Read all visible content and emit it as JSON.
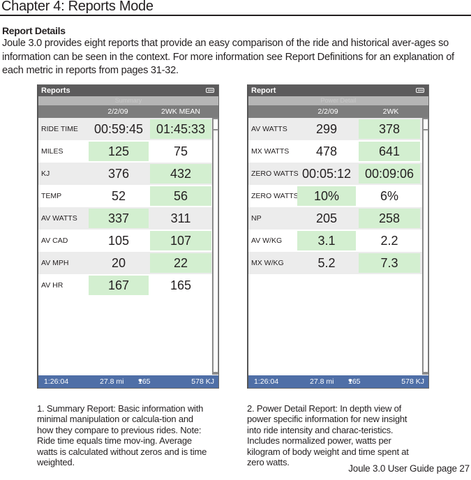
{
  "page": {
    "chapter_title": "Chapter 4: Reports Mode",
    "section_title": "Report Details",
    "intro": "Joule 3.0  provides eight reports that provide an easy comparison of the ride and historical aver-ages so information can be seen in the context. For more information see Report Definitions for an explanation of  each metric in reports from pages 31-32.",
    "footer": "Joule 3.0 User Guide page 27"
  },
  "colors": {
    "title_bar": "#5c5b5c",
    "subtitle_band": "#b5b5b5",
    "column_header": "#7c7c7c",
    "highlight_cell": "#d3efd0",
    "alt_row": "#ececec",
    "status_bar": "#4f6fa7"
  },
  "screens": [
    {
      "title": "Reports",
      "battery_icon": "battery-icon",
      "subtitle": "Summary",
      "col1": "2/2/09",
      "col2": "2WK MEAN",
      "rows": [
        {
          "label": "RIDE TIME",
          "v1": "00:59:45",
          "v2": "01:45:33",
          "highlight": "v2"
        },
        {
          "label": "MILES",
          "v1": "125",
          "v2": "75",
          "highlight": "v1"
        },
        {
          "label": "KJ",
          "v1": "376",
          "v2": "432",
          "highlight": "v2"
        },
        {
          "label": "TEMP",
          "v1": "52",
          "v2": "56",
          "highlight": "v2"
        },
        {
          "label": "AV WATTS",
          "v1": "337",
          "v2": "311",
          "highlight": "v1"
        },
        {
          "label": "AV CAD",
          "v1": "105",
          "v2": "107",
          "highlight": "v2"
        },
        {
          "label": "AV MPH",
          "v1": "20",
          "v2": "22",
          "highlight": "v2"
        },
        {
          "label": "AV HR",
          "v1": "167",
          "v2": "165",
          "highlight": "v1"
        }
      ],
      "status": {
        "time": "1:26:04",
        "distance": "27.8 mi",
        "heart_icon": "heart-icon",
        "hr": "165",
        "energy": "578  KJ"
      },
      "caption": "1. Summary Report: Basic information with minimal manipulation or calcula-tion and how they compare to previous rides. Note: Ride time equals time mov-ing. Average watts is calculated without zeros and is time weighted."
    },
    {
      "title": "Report",
      "battery_icon": "battery-icon",
      "subtitle": "Power Detail",
      "col1": "2/2/09",
      "col2": "2WK",
      "rows": [
        {
          "label": "AV WATTS",
          "v1": "299",
          "v2": "378",
          "highlight": "v2"
        },
        {
          "label": "MX WATTS",
          "v1": "478",
          "v2": "641",
          "highlight": "v2"
        },
        {
          "label": "ZERO WATTS",
          "v1": "00:05:12",
          "v2": "00:09:06",
          "highlight": "v2"
        },
        {
          "label": "ZERO WATTS",
          "v1": "10%",
          "v2": "6%",
          "highlight": "v1"
        },
        {
          "label": "NP",
          "v1": "205",
          "v2": "258",
          "highlight": "v2"
        },
        {
          "label": "AV W/KG",
          "v1": "3.1",
          "v2": "2.2",
          "highlight": "v1"
        },
        {
          "label": "MX W/KG",
          "v1": "5.2",
          "v2": "7.3",
          "highlight": "v2"
        }
      ],
      "status": {
        "time": "1:26:04",
        "distance": "27.8 mi",
        "heart_icon": "heart-icon",
        "hr": "165",
        "energy": "578  KJ"
      },
      "caption": "2. Power Detail Report: In depth view of power specific information for new insight into ride intensity and charac-teristics. Includes normalized power, watts per kilogram of body weight and time spent at zero watts."
    }
  ]
}
